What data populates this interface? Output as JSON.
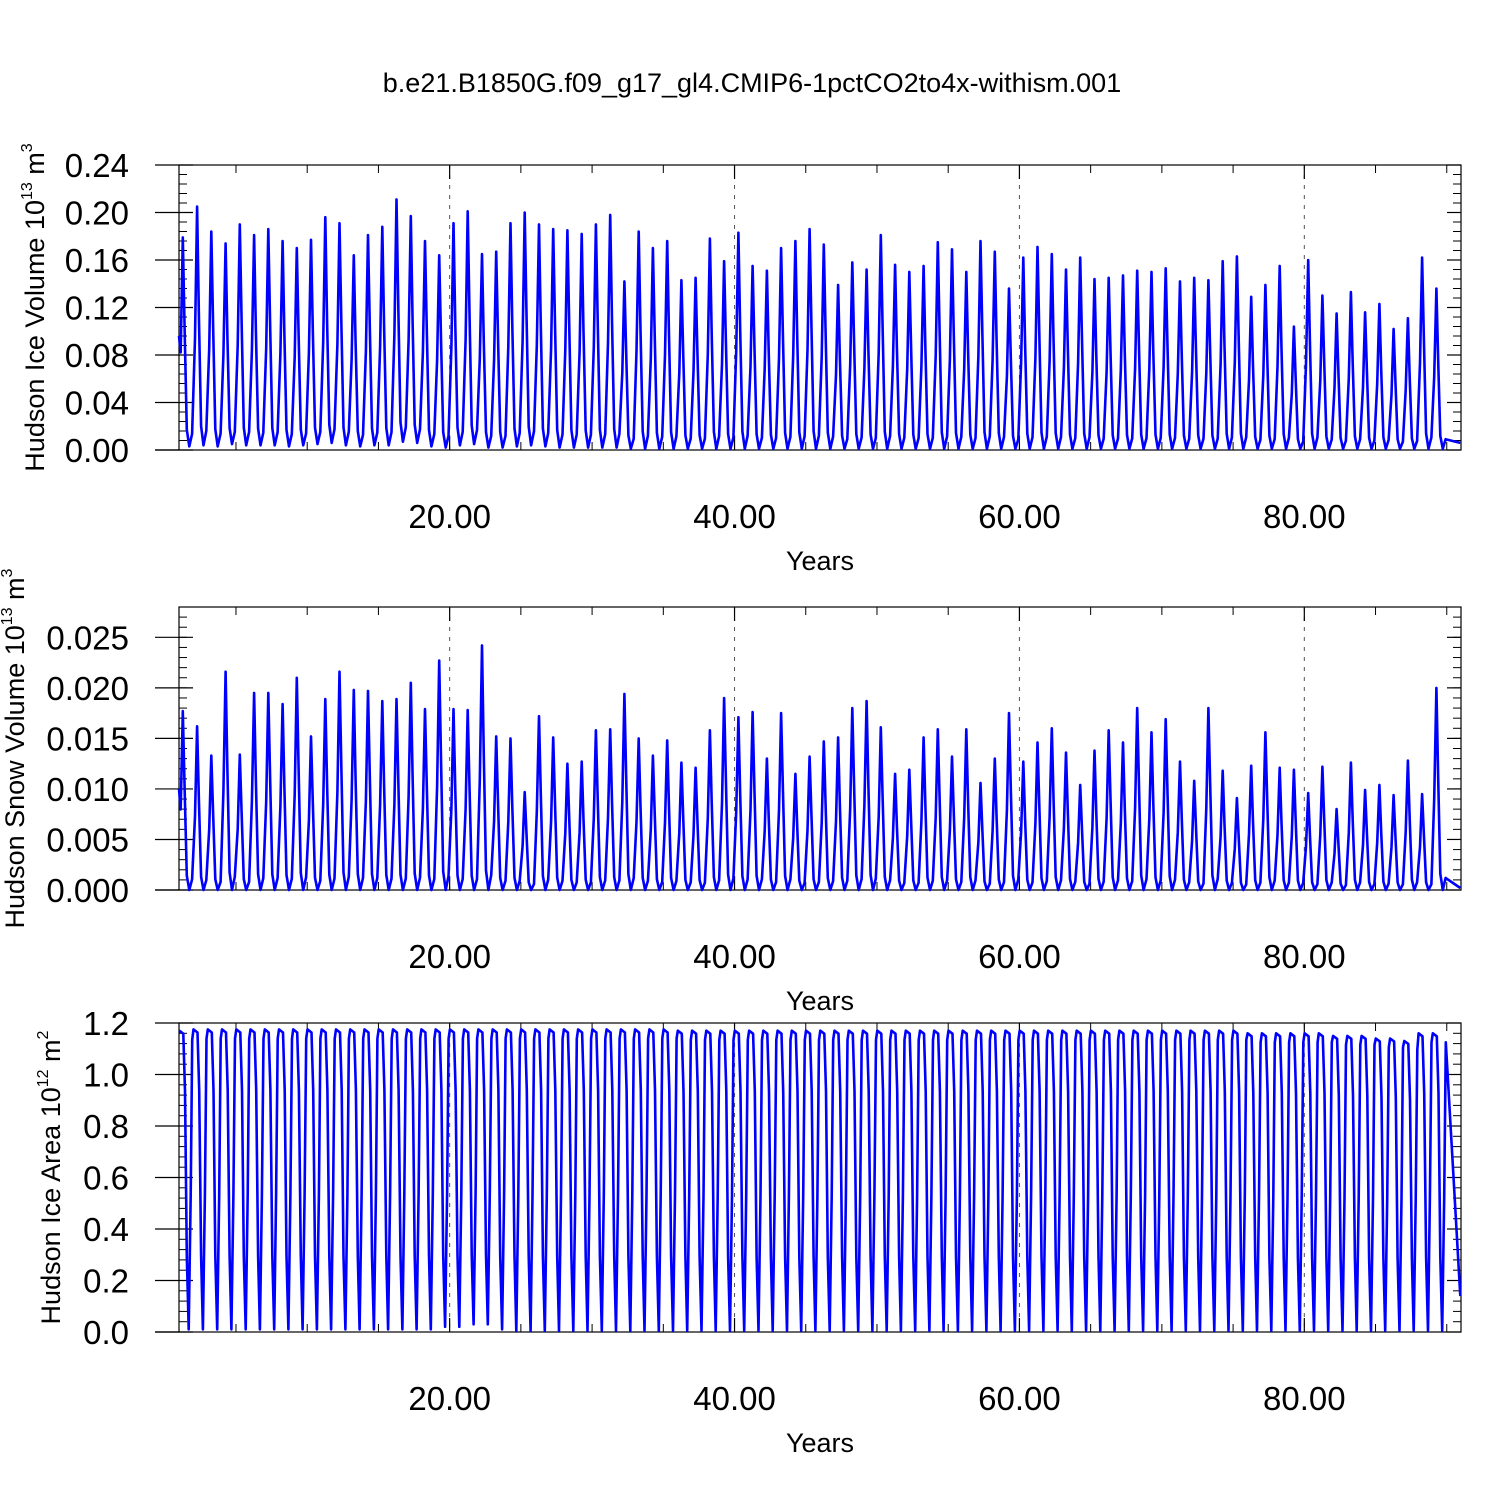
{
  "figure": {
    "title": "b.e21.B1850G.f09_g17_gl4.CMIP6-1pctCO2to4x-withism.001",
    "line_color": "#0000ff"
  },
  "chart_data": [
    {
      "type": "line",
      "title": "b.e21.B1850G.f09_g17_gl4.CMIP6-1pctCO2to4x-withism.001",
      "xlabel": "Years",
      "ylabel": "Hudson Ice Volume 10",
      "ylabel_exp": "13",
      "ylabel_unit": " m",
      "ylabel_unit_exp": "3",
      "xlim": [
        1,
        91
      ],
      "ylim": [
        0,
        0.24
      ],
      "xticks": [
        20,
        40,
        60,
        80
      ],
      "xtick_labels": [
        "20.00",
        "40.00",
        "60.00",
        "80.00"
      ],
      "yticks": [
        0,
        0.04,
        0.08,
        0.12,
        0.16,
        0.2,
        0.24
      ],
      "ytick_labels": [
        "0.00",
        "0.04",
        "0.08",
        "0.12",
        "0.16",
        "0.20",
        "0.24"
      ],
      "grid": "dashed vertical at x ticks",
      "start_value": 0.096,
      "end_value": 0.006,
      "series": [
        {
          "name": "",
          "description": "seasonal cycle; annual maxima and minima",
          "annual_max": [
            0.179,
            0.205,
            0.184,
            0.174,
            0.19,
            0.181,
            0.186,
            0.176,
            0.17,
            0.177,
            0.196,
            0.191,
            0.164,
            0.181,
            0.188,
            0.211,
            0.197,
            0.176,
            0.164,
            0.191,
            0.201,
            0.165,
            0.167,
            0.191,
            0.2,
            0.19,
            0.186,
            0.185,
            0.182,
            0.19,
            0.198,
            0.142,
            0.184,
            0.17,
            0.176,
            0.143,
            0.145,
            0.178,
            0.159,
            0.183,
            0.155,
            0.151,
            0.17,
            0.176,
            0.186,
            0.173,
            0.139,
            0.158,
            0.152,
            0.181,
            0.156,
            0.15,
            0.155,
            0.175,
            0.169,
            0.15,
            0.176,
            0.167,
            0.136,
            0.162,
            0.171,
            0.165,
            0.152,
            0.162,
            0.144,
            0.145,
            0.147,
            0.151,
            0.15,
            0.153,
            0.142,
            0.145,
            0.143,
            0.159,
            0.163,
            0.129,
            0.139,
            0.155,
            0.104,
            0.16,
            0.13,
            0.115,
            0.133,
            0.116,
            0.123,
            0.102,
            0.111,
            0.162,
            0.136
          ],
          "annual_min": [
            0.003,
            0.004,
            0.003,
            0.005,
            0.004,
            0.004,
            0.004,
            0.003,
            0.004,
            0.005,
            0.006,
            0.004,
            0.003,
            0.004,
            0.004,
            0.007,
            0.006,
            0.003,
            0.002,
            0.004,
            0.005,
            0.002,
            0.002,
            0.003,
            0.004,
            0.003,
            0.002,
            0.002,
            0.002,
            0.002,
            0.002,
            0.001,
            0.001,
            0.001,
            0.001,
            0.001,
            0.001,
            0.001,
            0.001,
            0.001,
            0.001,
            0.001,
            0.001,
            0.001,
            0.001,
            0.001,
            0.001,
            0.001,
            0.001,
            0.001,
            0.001,
            0.001,
            0.001,
            0.001,
            0.001,
            0.001,
            0.001,
            0.001,
            0.001,
            0.001,
            0.001,
            0.001,
            0.001,
            0.001,
            0.001,
            0.001,
            0.001,
            0.001,
            0.001,
            0.001,
            0.001,
            0.001,
            0.001,
            0.001,
            0.001,
            0.001,
            0.001,
            0.001,
            0.001,
            0.001,
            0.001,
            0.001,
            0.001,
            0.001,
            0.001,
            0.001,
            0.001,
            0.001,
            0.001
          ]
        }
      ]
    },
    {
      "type": "line",
      "title": "",
      "xlabel": "Years",
      "ylabel": "Hudson Snow Volume 10",
      "ylabel_exp": "13",
      "ylabel_unit": " m",
      "ylabel_unit_exp": "3",
      "xlim": [
        1,
        91
      ],
      "ylim": [
        0,
        0.028
      ],
      "xticks": [
        20,
        40,
        60,
        80
      ],
      "xtick_labels": [
        "20.00",
        "40.00",
        "60.00",
        "80.00"
      ],
      "yticks": [
        0,
        0.005,
        0.01,
        0.015,
        0.02,
        0.025
      ],
      "ytick_labels": [
        "0.000",
        "0.005",
        "0.010",
        "0.015",
        "0.020",
        "0.025"
      ],
      "grid": "dashed vertical at x ticks",
      "start_value": 0.01,
      "end_value": 0.0002,
      "series": [
        {
          "name": "",
          "description": "seasonal cycle; annual maxima and minima",
          "annual_max": [
            0.0177,
            0.0162,
            0.0133,
            0.0216,
            0.0134,
            0.0195,
            0.0195,
            0.0184,
            0.021,
            0.0152,
            0.0189,
            0.0216,
            0.0198,
            0.0197,
            0.0187,
            0.0189,
            0.0205,
            0.0179,
            0.0227,
            0.0179,
            0.0178,
            0.0242,
            0.0152,
            0.015,
            0.0097,
            0.0172,
            0.0151,
            0.0125,
            0.0127,
            0.0158,
            0.0159,
            0.0194,
            0.015,
            0.0133,
            0.0148,
            0.0126,
            0.0121,
            0.0158,
            0.019,
            0.0171,
            0.0176,
            0.013,
            0.0175,
            0.0115,
            0.0132,
            0.0147,
            0.0151,
            0.018,
            0.0187,
            0.0161,
            0.0115,
            0.0119,
            0.0151,
            0.0159,
            0.0132,
            0.0159,
            0.0106,
            0.013,
            0.0175,
            0.0127,
            0.0146,
            0.016,
            0.0136,
            0.0104,
            0.0138,
            0.0158,
            0.0146,
            0.018,
            0.0156,
            0.0169,
            0.0127,
            0.0108,
            0.018,
            0.0118,
            0.0091,
            0.0123,
            0.0156,
            0.0121,
            0.0119,
            0.0096,
            0.0122,
            0.008,
            0.0126,
            0.0099,
            0.0104,
            0.0094,
            0.0128,
            0.0095,
            0.02
          ],
          "annual_min": [
            0,
            0,
            0,
            0,
            0,
            0,
            0,
            0,
            0,
            0,
            0,
            0,
            0,
            0,
            0,
            0,
            0,
            0,
            0,
            0,
            0,
            0,
            0,
            0,
            0,
            0,
            0,
            0,
            0,
            0,
            0,
            0,
            0,
            0,
            0,
            0,
            0,
            0,
            0,
            0,
            0,
            0,
            0,
            0,
            0,
            0,
            0,
            0,
            0,
            0,
            0,
            0,
            0,
            0,
            0,
            0,
            0,
            0,
            0,
            0,
            0,
            0,
            0,
            0,
            0,
            0,
            0,
            0,
            0,
            0,
            0,
            0,
            0,
            0,
            0,
            0,
            0,
            0,
            0,
            0,
            0,
            0,
            0,
            0,
            0,
            0,
            0,
            0,
            0
          ]
        }
      ]
    },
    {
      "type": "line",
      "title": "",
      "xlabel": "Years",
      "ylabel": "Hudson Ice Area 10",
      "ylabel_exp": "12",
      "ylabel_unit": " m",
      "ylabel_unit_exp": "2",
      "xlim": [
        1,
        91
      ],
      "ylim": [
        0,
        1.2
      ],
      "xticks": [
        20,
        40,
        60,
        80
      ],
      "xtick_labels": [
        "20.00",
        "40.00",
        "60.00",
        "80.00"
      ],
      "yticks": [
        0,
        0.2,
        0.4,
        0.6,
        0.8,
        1.0,
        1.2
      ],
      "ytick_labels": [
        "0.0",
        "0.2",
        "0.4",
        "0.6",
        "0.8",
        "1.0",
        "1.2"
      ],
      "grid": "dashed vertical at x ticks",
      "start_value": 1.17,
      "end_value": 0.14,
      "series": [
        {
          "name": "",
          "description": "seasonal cycle; annual maxima and minima",
          "annual_max": [
            1.17,
            1.175,
            1.175,
            1.175,
            1.175,
            1.175,
            1.175,
            1.175,
            1.175,
            1.175,
            1.175,
            1.175,
            1.175,
            1.175,
            1.175,
            1.175,
            1.175,
            1.175,
            1.175,
            1.175,
            1.175,
            1.175,
            1.175,
            1.175,
            1.175,
            1.175,
            1.175,
            1.175,
            1.175,
            1.175,
            1.175,
            1.175,
            1.175,
            1.175,
            1.175,
            1.17,
            1.17,
            1.17,
            1.17,
            1.17,
            1.17,
            1.17,
            1.17,
            1.17,
            1.17,
            1.17,
            1.17,
            1.17,
            1.17,
            1.17,
            1.17,
            1.17,
            1.17,
            1.17,
            1.17,
            1.17,
            1.17,
            1.17,
            1.17,
            1.17,
            1.17,
            1.17,
            1.17,
            1.17,
            1.17,
            1.17,
            1.17,
            1.17,
            1.17,
            1.17,
            1.17,
            1.17,
            1.17,
            1.17,
            1.17,
            1.16,
            1.16,
            1.16,
            1.16,
            1.16,
            1.16,
            1.15,
            1.15,
            1.15,
            1.14,
            1.14,
            1.13,
            1.16,
            1.16
          ],
          "annual_min": [
            0.01,
            0.01,
            0.01,
            0.01,
            0.01,
            0.01,
            0.01,
            0.01,
            0.01,
            0.01,
            0.01,
            0.01,
            0.01,
            0.01,
            0.01,
            0.01,
            0.01,
            0.01,
            0.02,
            0.02,
            0.03,
            0.03,
            0.01,
            0.005,
            0.005,
            0.005,
            0.005,
            0.005,
            0.005,
            0.005,
            0.005,
            0.005,
            0.005,
            0.005,
            0.005,
            0.005,
            0.005,
            0.005,
            0.005,
            0.005,
            0.005,
            0.005,
            0.005,
            0.005,
            0.005,
            0.005,
            0.005,
            0.005,
            0.005,
            0.005,
            0.005,
            0.005,
            0.005,
            0.005,
            0.005,
            0.005,
            0.005,
            0.005,
            0.005,
            0.005,
            0.005,
            0.005,
            0.005,
            0.005,
            0.005,
            0.005,
            0.005,
            0.005,
            0.005,
            0.005,
            0.005,
            0.005,
            0.005,
            0.005,
            0.005,
            0.005,
            0.005,
            0.005,
            0.005,
            0.005,
            0.005,
            0.005,
            0.005,
            0.005,
            0.005,
            0.005,
            0.005,
            0.005,
            0.005
          ]
        }
      ]
    }
  ]
}
